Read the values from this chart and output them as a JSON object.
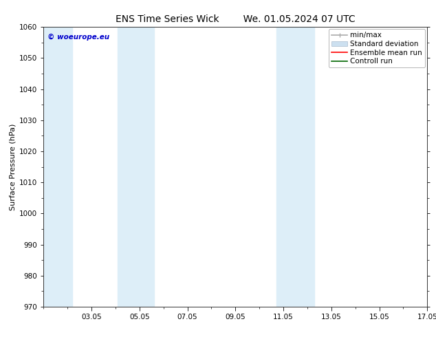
{
  "title": "ENS Time Series Wick        We. 01.05.2024 07 UTC",
  "ylabel": "Surface Pressure (hPa)",
  "ylim": [
    970,
    1060
  ],
  "yticks": [
    970,
    980,
    990,
    1000,
    1010,
    1020,
    1030,
    1040,
    1050,
    1060
  ],
  "x_min": 1.0,
  "x_max": 17.0,
  "xtick_labels": [
    "03.05",
    "05.05",
    "07.05",
    "09.05",
    "11.05",
    "13.05",
    "15.05",
    "17.05"
  ],
  "xtick_positions": [
    3,
    5,
    7,
    9,
    11,
    13,
    15,
    17
  ],
  "shaded_bands": [
    {
      "x_start": 1.0,
      "x_end": 2.2,
      "color": "#ddeef8"
    },
    {
      "x_start": 4.1,
      "x_end": 5.6,
      "color": "#ddeef8"
    },
    {
      "x_start": 10.7,
      "x_end": 12.3,
      "color": "#ddeef8"
    }
  ],
  "watermark": "© woeurope.eu",
  "watermark_color": "#0000cc",
  "background_color": "#ffffff",
  "title_fontsize": 10,
  "label_fontsize": 8,
  "tick_fontsize": 7.5,
  "legend_fontsize": 7.5,
  "minmax_color": "#aaaaaa",
  "std_color": "#cce0f0",
  "ensemble_color": "#ff0000",
  "control_color": "#006600"
}
